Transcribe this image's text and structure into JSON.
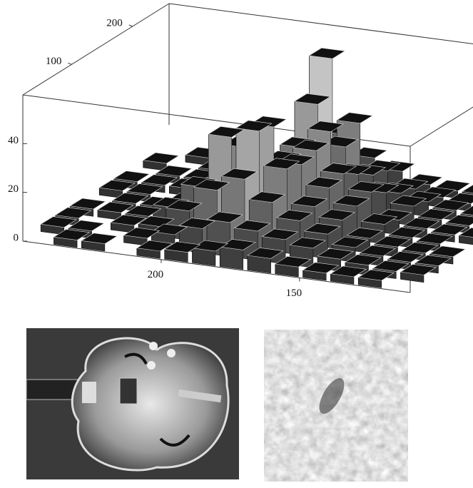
{
  "chart_data": {
    "type": "bar3d",
    "xlim": [
      250,
      110
    ],
    "xticks": [
      200,
      150
    ],
    "ylim": [
      20,
      260
    ],
    "yticks": [
      100,
      200
    ],
    "zlim": [
      0,
      60
    ],
    "zticks": [
      0,
      20,
      40
    ],
    "x": [
      245,
      235,
      225,
      215,
      205,
      195,
      185,
      175,
      165,
      155,
      145,
      135,
      125,
      115
    ],
    "y": [
      32,
      56,
      80,
      104,
      128,
      152,
      176,
      200,
      224,
      248
    ],
    "values": [
      [
        null,
        3,
        3,
        null,
        3,
        4,
        6,
        8,
        6,
        4,
        3,
        3,
        3,
        null
      ],
      [
        3,
        3,
        null,
        3,
        6,
        10,
        14,
        12,
        10,
        8,
        5,
        4,
        3,
        3
      ],
      [
        3,
        null,
        3,
        4,
        12,
        22,
        28,
        20,
        14,
        10,
        6,
        4,
        3,
        3
      ],
      [
        3,
        3,
        3,
        8,
        18,
        40,
        44,
        30,
        16,
        12,
        6,
        4,
        3,
        3
      ],
      [
        null,
        3,
        3,
        6,
        14,
        32,
        42,
        28,
        20,
        14,
        8,
        4,
        3,
        null
      ],
      [
        3,
        3,
        null,
        4,
        10,
        18,
        24,
        30,
        22,
        16,
        6,
        4,
        3,
        3
      ],
      [
        3,
        3,
        3,
        3,
        6,
        12,
        26,
        34,
        18,
        12,
        8,
        4,
        3,
        3
      ],
      [
        null,
        3,
        3,
        3,
        4,
        14,
        40,
        24,
        14,
        8,
        6,
        4,
        3,
        null
      ],
      [
        3,
        null,
        3,
        3,
        4,
        10,
        55,
        30,
        12,
        6,
        4,
        3,
        3,
        3
      ],
      [
        null,
        3,
        3,
        null,
        3,
        6,
        20,
        12,
        8,
        4,
        3,
        3,
        null,
        null
      ]
    ]
  }
}
